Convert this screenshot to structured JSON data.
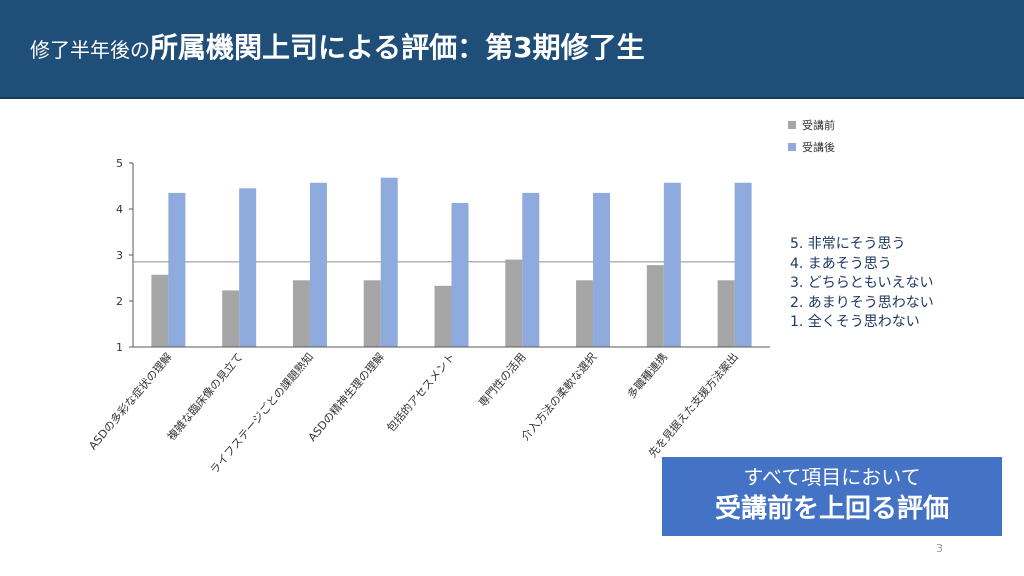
{
  "header": {
    "title_small": "修了半年後の",
    "title_large": "所属機関上司による評価：第3期修了生"
  },
  "legend": {
    "items": [
      {
        "label": "受講前",
        "color": "#a6a6a6"
      },
      {
        "label": "受講後",
        "color": "#8faadc"
      }
    ]
  },
  "scale_note": {
    "lines": [
      "5. 非常にそう思う",
      "4. まあそう思う",
      "3. どちらともいえない",
      "2. あまりそう思わない",
      "1. 全くそう思わない"
    ]
  },
  "callout": {
    "line1": "すべて項目において",
    "line2": "受講前を上回る評価"
  },
  "page_number": "3",
  "chart_data": {
    "type": "bar",
    "title": "",
    "xlabel": "",
    "ylabel": "",
    "ylim": [
      1,
      5
    ],
    "yticks": [
      1,
      2,
      3,
      4,
      5
    ],
    "reference_line": 2.85,
    "grid": false,
    "legend_position": "top-right",
    "categories": [
      "ASDの多彩な症状の理解",
      "複雑な臨床像の見立て",
      "ライフステージごとの課題熟知",
      "ASDの精神生理の理解",
      "包括的アセスメント",
      "専門性の活用",
      "介入方法の柔軟な選択",
      "多職種連携",
      "先を見据えた支援方法案出"
    ],
    "series": [
      {
        "name": "受講前",
        "color": "#a6a6a6",
        "values": [
          2.57,
          2.23,
          2.45,
          2.45,
          2.33,
          2.9,
          2.45,
          2.78,
          2.45
        ]
      },
      {
        "name": "受講後",
        "color": "#8faadc",
        "values": [
          4.35,
          4.45,
          4.57,
          4.68,
          4.13,
          4.35,
          4.35,
          4.57,
          4.57
        ]
      }
    ]
  }
}
